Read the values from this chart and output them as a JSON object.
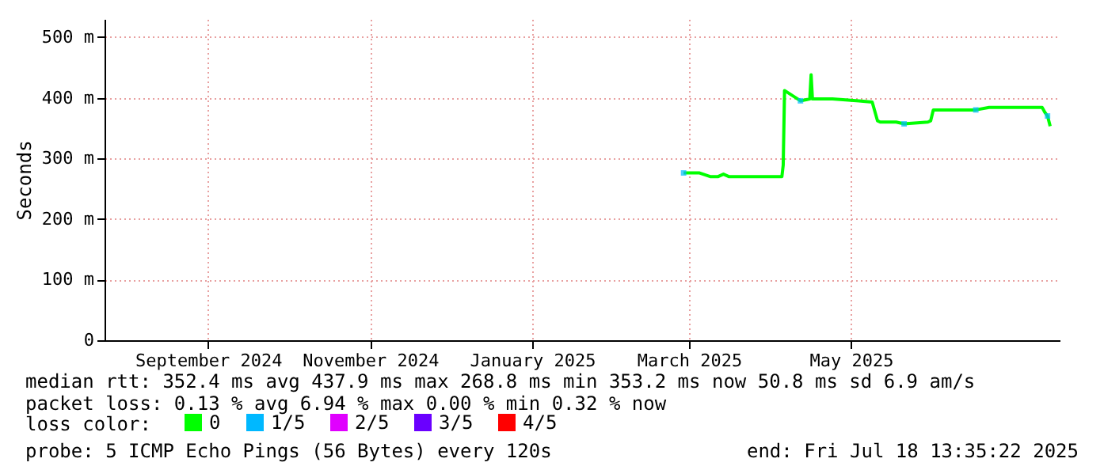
{
  "chart_data": {
    "type": "line",
    "ylabel": "Seconds",
    "x": [
      "2025-02-27",
      "2025-03-05",
      "2025-03-09",
      "2025-03-12",
      "2025-03-14",
      "2025-03-16",
      "2025-03-25",
      "2025-04-05",
      "2025-04-05T12:00",
      "2025-04-06",
      "2025-04-12",
      "2025-04-15T12:00",
      "2025-04-16",
      "2025-04-16T12:00",
      "2025-04-24",
      "2025-05-04",
      "2025-05-09",
      "2025-05-11",
      "2025-05-12",
      "2025-05-18",
      "2025-05-21",
      "2025-05-30",
      "2025-05-31",
      "2025-06-01",
      "2025-06-07",
      "2025-06-17",
      "2025-06-22",
      "2025-07-02",
      "2025-07-12",
      "2025-07-13",
      "2025-07-14",
      "2025-07-15"
    ],
    "series": [
      {
        "name": "0",
        "color": "#00ff00",
        "values": [
          276,
          276,
          270,
          270,
          274,
          270,
          270,
          270,
          289,
          412,
          395,
          398,
          438,
          398,
          398,
          395,
          393,
          362,
          360,
          360,
          357,
          360,
          362,
          380,
          380,
          380,
          384,
          384,
          384,
          376,
          370,
          353
        ]
      },
      {
        "name": "1/5",
        "color": "#00b8ff",
        "type": "scatter",
        "values": [
          276,
          null,
          null,
          null,
          null,
          null,
          null,
          null,
          null,
          null,
          395,
          null,
          null,
          null,
          null,
          null,
          null,
          null,
          null,
          null,
          357,
          null,
          null,
          null,
          null,
          380,
          null,
          null,
          null,
          null,
          370,
          null
        ]
      },
      {
        "name": "2/5",
        "color": "#e000ff",
        "type": "scatter",
        "values": [
          null,
          null,
          null,
          null,
          null,
          null,
          null,
          null,
          null,
          null,
          null,
          null,
          null,
          null,
          null,
          null,
          null,
          null,
          null,
          null,
          null,
          null,
          null,
          null,
          null,
          null,
          null,
          null,
          null,
          null,
          null,
          null
        ]
      },
      {
        "name": "3/5",
        "color": "#6a00ff",
        "type": "scatter",
        "values": [
          null,
          null,
          null,
          null,
          null,
          null,
          null,
          null,
          null,
          null,
          null,
          null,
          null,
          null,
          null,
          null,
          null,
          null,
          null,
          null,
          null,
          null,
          null,
          null,
          null,
          null,
          null,
          null,
          null,
          null,
          null,
          null
        ]
      },
      {
        "name": "4/5",
        "color": "#ff0000",
        "type": "scatter",
        "values": [
          null,
          null,
          null,
          null,
          null,
          null,
          null,
          null,
          null,
          null,
          null,
          null,
          null,
          null,
          null,
          null,
          null,
          null,
          null,
          null,
          null,
          null,
          null,
          null,
          null,
          null,
          null,
          null,
          null,
          null,
          null,
          null
        ]
      }
    ],
    "legend_title": "loss color:",
    "legend": "bottom left",
    "grid": true,
    "xlim": [
      "2024-07-24",
      "2025-07-18T13:35"
    ],
    "xticks": [
      {
        "value": "2024-09-01",
        "label": "September 2024"
      },
      {
        "value": "2024-11-01",
        "label": "November 2024"
      },
      {
        "value": "2025-01-01",
        "label": "January 2025"
      },
      {
        "value": "2025-03-01",
        "label": "March 2025"
      },
      {
        "value": "2025-05-01",
        "label": "May 2025"
      }
    ],
    "ylim": [
      0,
      530
    ],
    "yticks": [
      0,
      {
        "value": 100,
        "label": "100 m"
      },
      {
        "value": 200,
        "label": "200 m"
      },
      {
        "value": 300,
        "label": "300 m"
      },
      {
        "value": 400,
        "label": "400 m"
      },
      {
        "value": 500,
        "label": "500 m"
      }
    ],
    "annotations": [
      "median rtt:  352.4 ms avg  437.9 ms max  268.8 ms min  353.2 ms now  50.8 ms sd  6.9   am/s",
      "packet loss: 0.13 % avg  6.94 % max  0.00 % min  0.32 % now",
      "probe:       5 ICMP Echo Pings (56 Bytes) every 120s",
      "end: Fri Jul 18 13:35:22 2025"
    ]
  }
}
